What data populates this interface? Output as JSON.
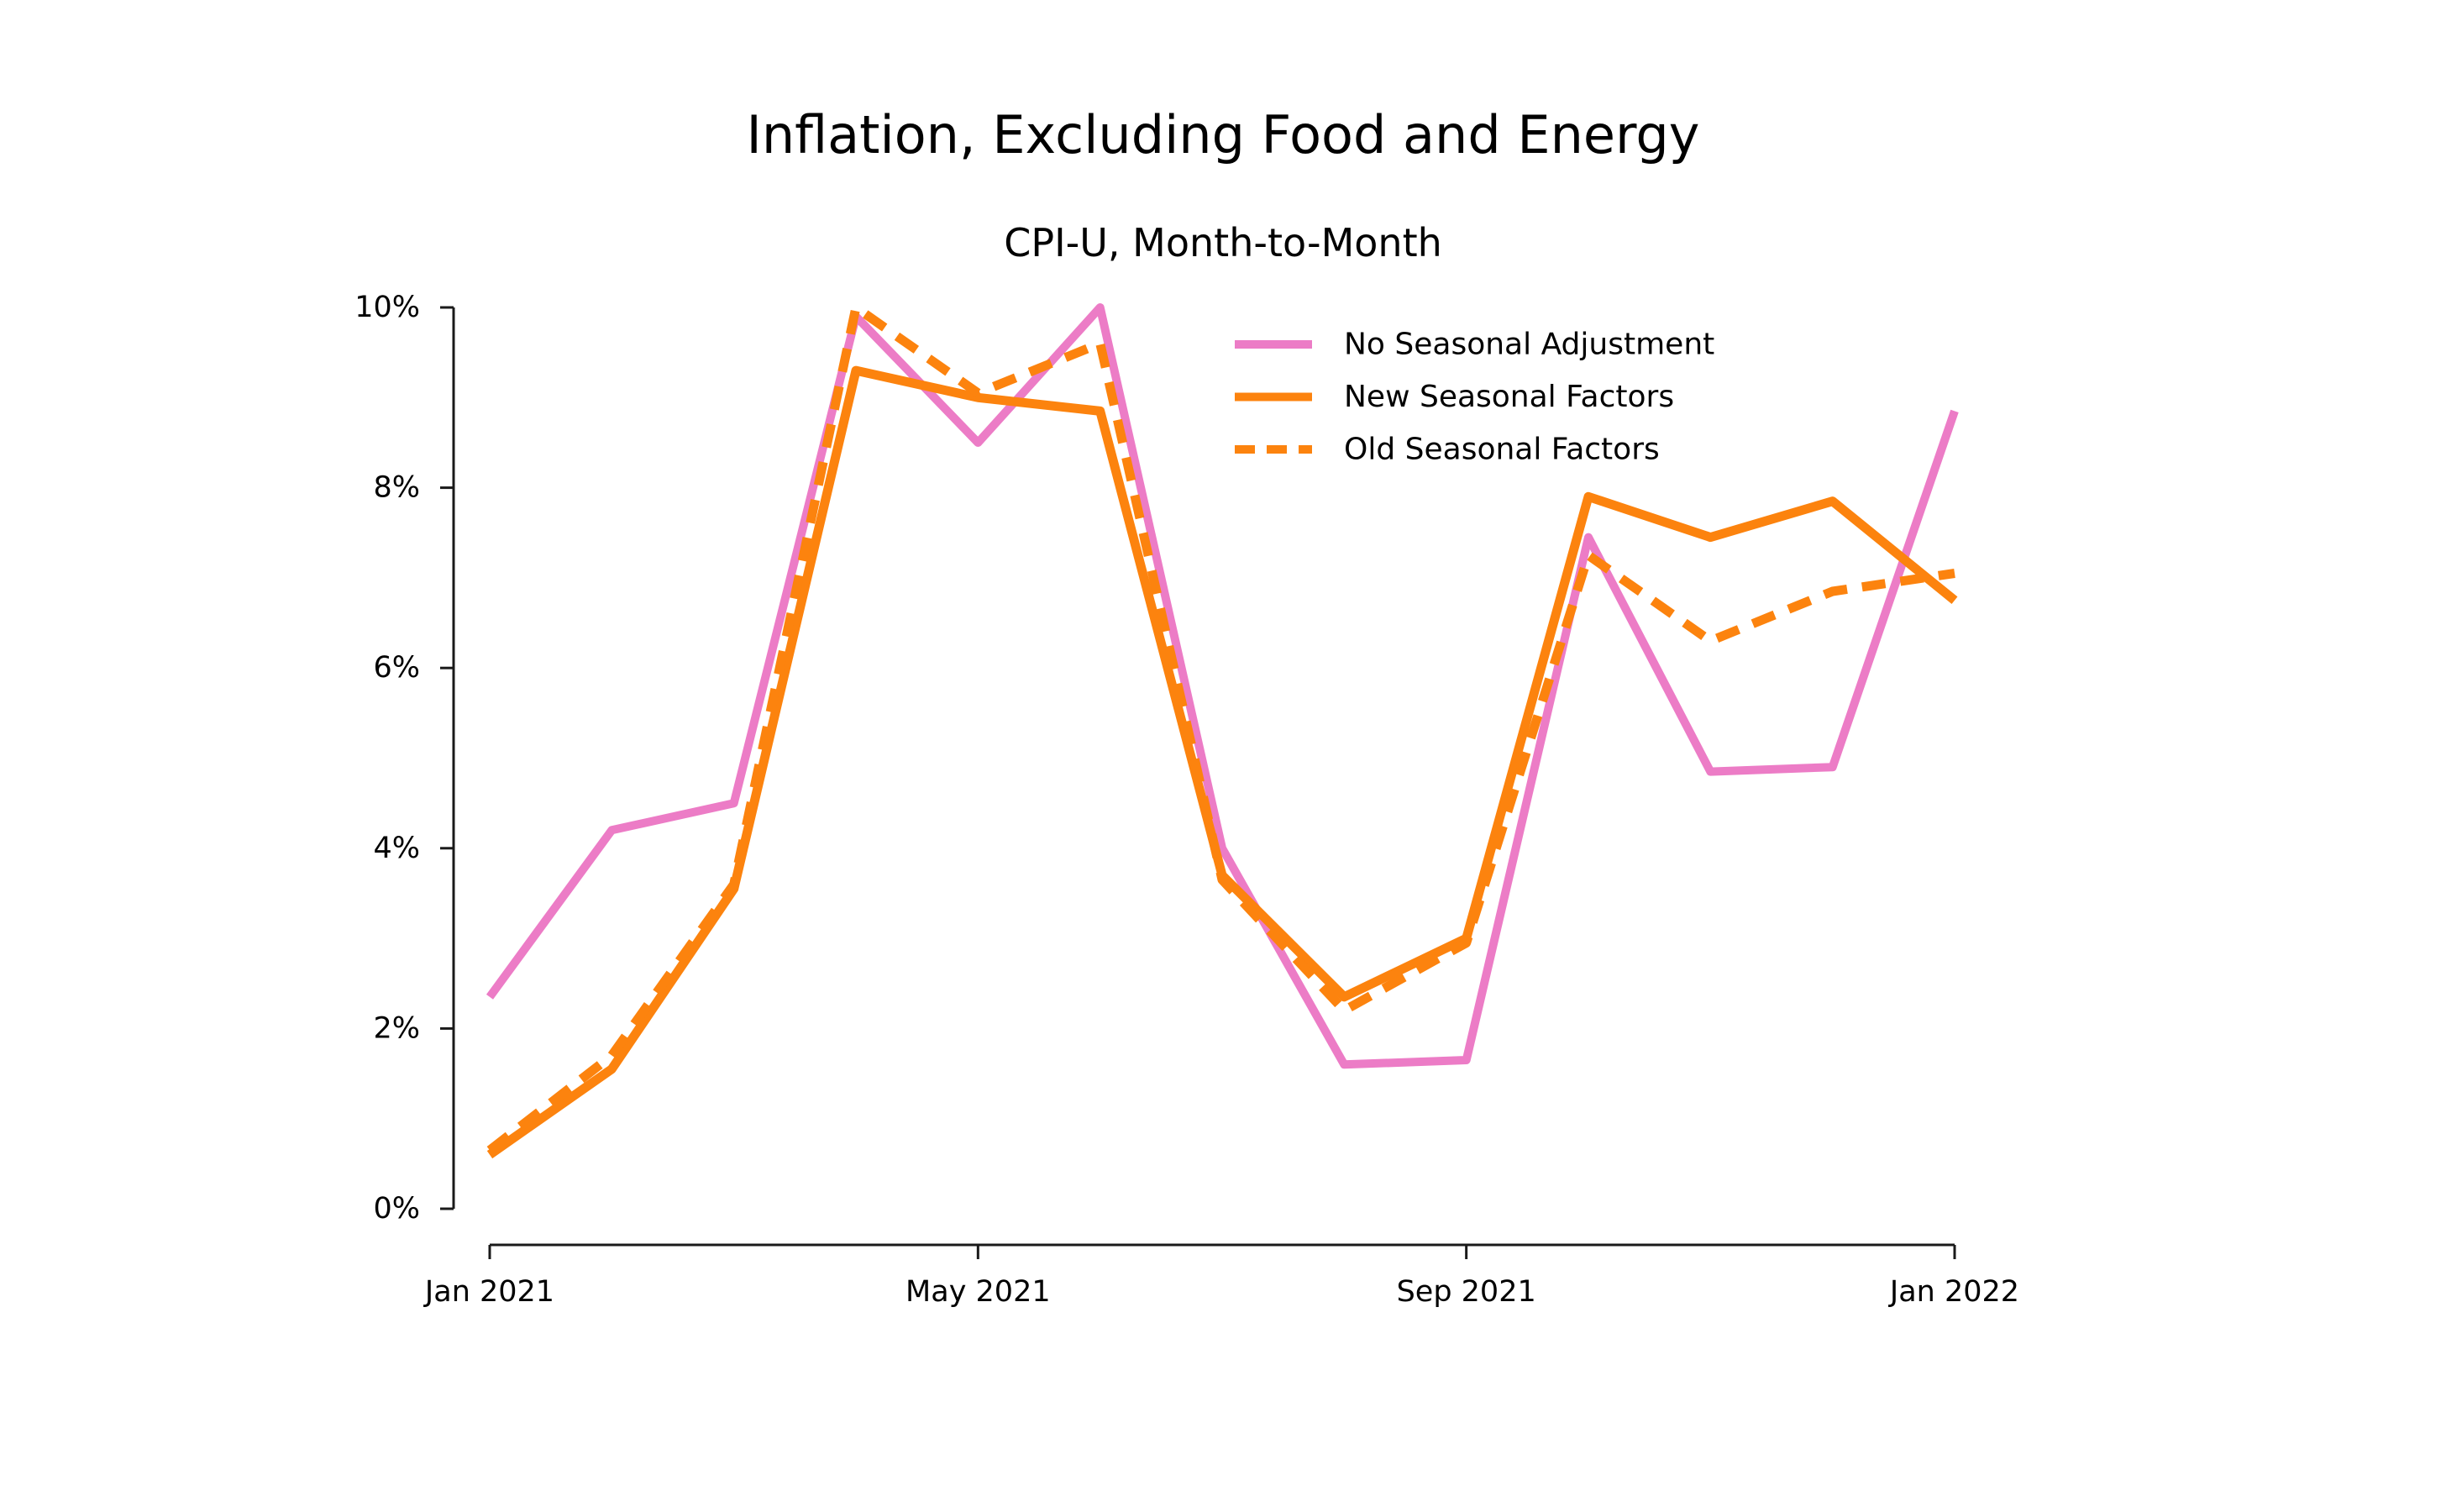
{
  "header": {
    "title": "Inflation, Excluding Food and Energy",
    "subtitle": "CPI-U, Month-to-Month"
  },
  "colors": {
    "pink": "#ec7cc6",
    "orange": "#fc830e",
    "axis": "#1a1a1a",
    "text": "#000000",
    "background": "#ffffff"
  },
  "chart_data": {
    "type": "line",
    "title": "Inflation, Excluding Food and Energy",
    "subtitle": "CPI-U, Month-to-Month",
    "xlabel": "",
    "ylabel": "",
    "grid": false,
    "ylim": [
      0,
      10
    ],
    "y_tick_values": [
      0,
      2,
      4,
      6,
      8,
      10
    ],
    "y_tick_labels": [
      "0%",
      "2%",
      "4%",
      "6%",
      "8%",
      "10%"
    ],
    "x": [
      "Jan 2021",
      "Feb 2021",
      "Mar 2021",
      "Apr 2021",
      "May 2021",
      "Jun 2021",
      "Jul 2021",
      "Aug 2021",
      "Sep 2021",
      "Oct 2021",
      "Nov 2021",
      "Dec 2021",
      "Jan 2022"
    ],
    "x_tick_indices": [
      0,
      4,
      8,
      12
    ],
    "x_tick_labels": [
      "Jan 2021",
      "May 2021",
      "Sep 2021",
      "Jan 2022"
    ],
    "legend_position": "upper right inside",
    "series": [
      {
        "name": "No Seasonal Adjustment",
        "color": "pink",
        "line_style": "solid",
        "values": [
          2.35,
          4.2,
          4.5,
          9.9,
          8.5,
          10.0,
          4.0,
          1.6,
          1.65,
          7.45,
          4.85,
          4.9,
          8.85
        ]
      },
      {
        "name": "New Seasonal Factors",
        "color": "orange",
        "line_style": "solid",
        "values": [
          0.6,
          1.55,
          3.55,
          9.3,
          9.0,
          8.85,
          3.7,
          2.35,
          3.0,
          7.9,
          7.45,
          7.85,
          6.75
        ]
      },
      {
        "name": "Old Seasonal Factors",
        "color": "orange",
        "line_style": "dashed",
        "values": [
          0.65,
          1.7,
          3.6,
          10.0,
          9.05,
          9.6,
          3.65,
          2.2,
          2.95,
          7.25,
          6.3,
          6.85,
          7.05
        ]
      }
    ]
  }
}
